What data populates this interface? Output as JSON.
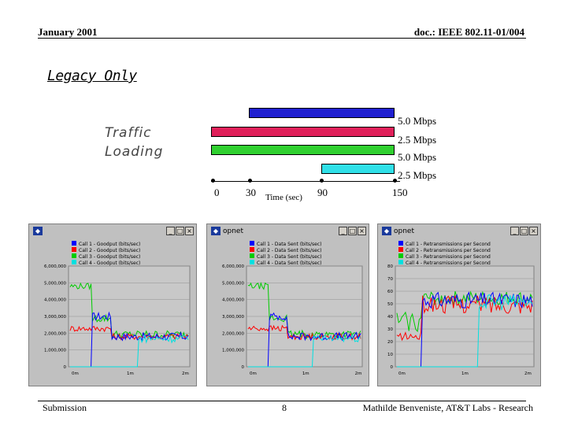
{
  "header": {
    "date": "January 2001",
    "doc": "doc.: IEEE 802.11-01/004"
  },
  "title": "Legacy Only",
  "traffic_label": [
    "Traffic",
    "Loading"
  ],
  "traffic_bars": [
    {
      "rate": "5.0 Mbps",
      "color": "#2020d0",
      "start": 30,
      "end": 150
    },
    {
      "rate": "2.5 Mbps",
      "color": "#e0205a",
      "start": 0,
      "end": 150
    },
    {
      "rate": "5.0 Mbps",
      "color": "#30d030",
      "start": 0,
      "end": 150
    },
    {
      "rate": "2.5 Mbps",
      "color": "#30e0e8",
      "start": 90,
      "end": 150
    }
  ],
  "time_axis": {
    "ticks": [
      "0",
      "30",
      "90",
      "150"
    ],
    "label": "Time (sec)"
  },
  "windows": [
    {
      "title": "",
      "legend": [
        "Call 1 - Goodput (bits/sec)",
        "Call 2 - Goodput (bits/sec)",
        "Call 3 - Goodput (bits/sec)",
        "Call 4 - Goodput (bits/sec)"
      ],
      "yticks": [
        "6,000,000",
        "5,000,000",
        "4,000,000",
        "3,000,000",
        "2,000,000",
        "1,000,000",
        "0"
      ],
      "xticks": [
        "0m",
        "1m",
        "2m"
      ]
    },
    {
      "title": "opnet",
      "legend": [
        "Call 1 - Data Sent (bits/sec)",
        "Call 2 - Data Sent (bits/sec)",
        "Call 3 - Data Sent (bits/sec)",
        "Call 4 - Data Sent (bits/sec)"
      ],
      "yticks": [
        "6,000,000",
        "5,000,000",
        "4,000,000",
        "3,000,000",
        "2,000,000",
        "1,000,000",
        "0"
      ],
      "xticks": [
        "0m",
        "1m",
        "2m"
      ]
    },
    {
      "title": "opnet",
      "legend": [
        "Call 1 - Retransmissions per Second",
        "Call 2 - Retransmissions per Second",
        "Call 3 - Retransmissions per Second",
        "Call 4 - Retransmissions per Second"
      ],
      "yticks": [
        "80",
        "70",
        "60",
        "50",
        "40",
        "30",
        "20",
        "10",
        "0"
      ],
      "xticks": [
        "0m",
        "1m",
        "2m"
      ]
    }
  ],
  "series_colors": [
    "#0000ff",
    "#ff0000",
    "#00cc00",
    "#00e0e0"
  ],
  "footer": {
    "left": "Submission",
    "page": "8",
    "right": "Mathilde Benveniste, AT&T Labs - Research"
  }
}
